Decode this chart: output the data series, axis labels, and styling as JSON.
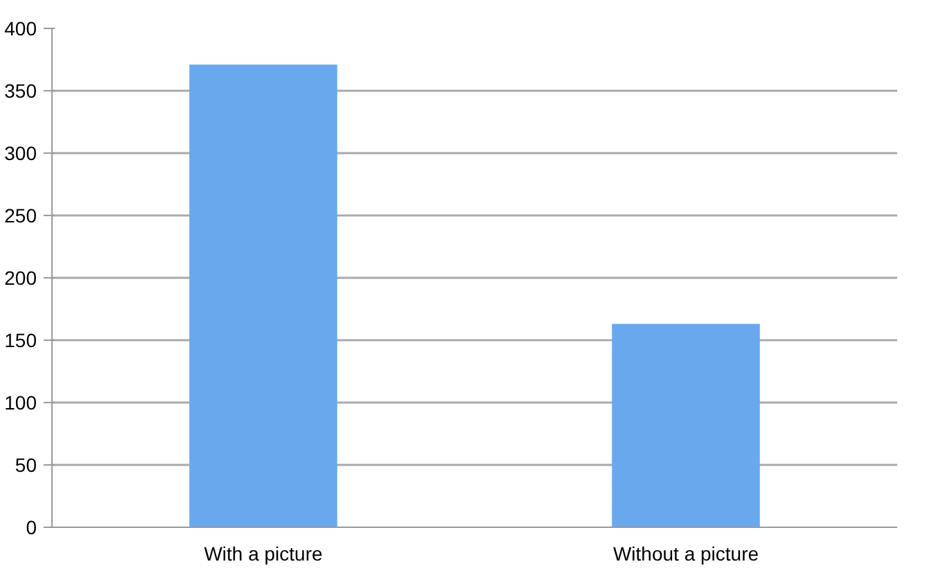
{
  "chart_data": {
    "type": "bar",
    "categories": [
      "With a picture",
      "Without a picture"
    ],
    "values": [
      371,
      163
    ],
    "color": "#6aa8ee",
    "ylim": [
      0,
      400
    ],
    "yticks": [
      0,
      50,
      100,
      150,
      200,
      250,
      300,
      350,
      400
    ],
    "grid": "y"
  }
}
